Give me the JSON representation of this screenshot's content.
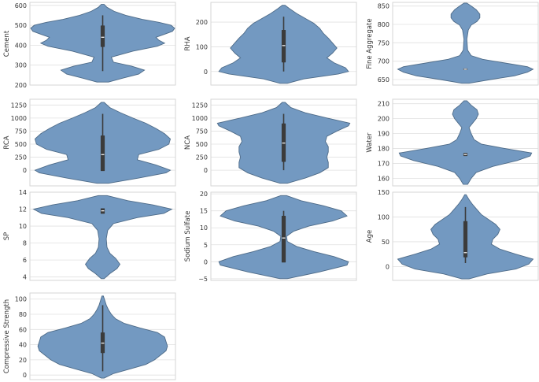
{
  "chart_data": [
    {
      "type": "violin",
      "ylabel": "Cement",
      "ylim": [
        200,
        615
      ],
      "yticks": [
        200,
        300,
        400,
        500,
        600
      ],
      "range": [
        215,
        605
      ],
      "density": [
        [
          215,
          0.08
        ],
        [
          235,
          0.28
        ],
        [
          255,
          0.5
        ],
        [
          275,
          0.58
        ],
        [
          295,
          0.4
        ],
        [
          315,
          0.15
        ],
        [
          340,
          0.12
        ],
        [
          370,
          0.42
        ],
        [
          395,
          0.76
        ],
        [
          410,
          0.86
        ],
        [
          425,
          0.78
        ],
        [
          440,
          0.74
        ],
        [
          455,
          0.86
        ],
        [
          470,
          0.97
        ],
        [
          485,
          1.0
        ],
        [
          500,
          0.95
        ],
        [
          515,
          0.78
        ],
        [
          530,
          0.55
        ],
        [
          550,
          0.32
        ],
        [
          570,
          0.16
        ],
        [
          590,
          0.06
        ],
        [
          605,
          0.02
        ]
      ],
      "box": {
        "q1": 395,
        "median": 440,
        "q3": 495,
        "whisker_low": 270,
        "whisker_high": 550
      },
      "grid": true
    },
    {
      "type": "violin",
      "ylabel": "RHA",
      "ylim": [
        -55,
        280
      ],
      "yticks": [
        0,
        100,
        200
      ],
      "range": [
        -48,
        268
      ],
      "density": [
        [
          -48,
          0.05
        ],
        [
          -30,
          0.28
        ],
        [
          -10,
          0.76
        ],
        [
          0,
          0.9
        ],
        [
          15,
          0.86
        ],
        [
          35,
          0.7
        ],
        [
          55,
          0.6
        ],
        [
          75,
          0.68
        ],
        [
          95,
          0.74
        ],
        [
          115,
          0.68
        ],
        [
          135,
          0.62
        ],
        [
          155,
          0.55
        ],
        [
          175,
          0.5
        ],
        [
          195,
          0.42
        ],
        [
          215,
          0.3
        ],
        [
          235,
          0.18
        ],
        [
          255,
          0.08
        ],
        [
          268,
          0.02
        ]
      ],
      "box": {
        "q1": 40,
        "median": 105,
        "q3": 165,
        "whisker_low": 0,
        "whisker_high": 222
      },
      "grid": true
    },
    {
      "type": "violin",
      "ylabel": "Fine Aggregate",
      "ylim": [
        635,
        860
      ],
      "yticks": [
        650,
        700,
        750,
        800,
        850
      ],
      "range": [
        640,
        858
      ],
      "density": [
        [
          640,
          0.05
        ],
        [
          650,
          0.35
        ],
        [
          660,
          0.68
        ],
        [
          670,
          0.86
        ],
        [
          678,
          0.94
        ],
        [
          685,
          0.86
        ],
        [
          695,
          0.55
        ],
        [
          705,
          0.24
        ],
        [
          715,
          0.08
        ],
        [
          730,
          0.03
        ],
        [
          760,
          0.02
        ],
        [
          785,
          0.04
        ],
        [
          798,
          0.08
        ],
        [
          808,
          0.16
        ],
        [
          818,
          0.2
        ],
        [
          828,
          0.2
        ],
        [
          840,
          0.15
        ],
        [
          850,
          0.08
        ],
        [
          858,
          0.02
        ]
      ],
      "box": {
        "q1": 678,
        "median": 678,
        "q3": 678,
        "whisker_low": 678,
        "whisker_high": 678
      },
      "grid": true
    },
    {
      "type": "violin",
      "ylabel": "RCA",
      "ylim": [
        -300,
        1360
      ],
      "yticks": [
        0,
        250,
        500,
        750,
        1000,
        1250
      ],
      "range": [
        -250,
        1300
      ],
      "density": [
        [
          -250,
          0.08
        ],
        [
          -150,
          0.5
        ],
        [
          -50,
          0.88
        ],
        [
          0,
          0.94
        ],
        [
          100,
          0.74
        ],
        [
          200,
          0.48
        ],
        [
          300,
          0.5
        ],
        [
          400,
          0.78
        ],
        [
          500,
          0.92
        ],
        [
          600,
          0.94
        ],
        [
          700,
          0.86
        ],
        [
          800,
          0.74
        ],
        [
          900,
          0.6
        ],
        [
          1000,
          0.42
        ],
        [
          1100,
          0.25
        ],
        [
          1200,
          0.1
        ],
        [
          1300,
          0.02
        ]
      ],
      "box": {
        "q1": 0,
        "median": 300,
        "q3": 650,
        "whisker_low": 0,
        "whisker_high": 1080
      },
      "grid": true
    },
    {
      "type": "violin",
      "ylabel": "NCA",
      "ylim": [
        -300,
        1360
      ],
      "yticks": [
        0,
        250,
        500,
        750,
        1000,
        1250
      ],
      "range": [
        -250,
        1300
      ],
      "density": [
        [
          -250,
          0.05
        ],
        [
          -150,
          0.3
        ],
        [
          -50,
          0.5
        ],
        [
          50,
          0.62
        ],
        [
          150,
          0.62
        ],
        [
          250,
          0.6
        ],
        [
          350,
          0.62
        ],
        [
          450,
          0.62
        ],
        [
          550,
          0.58
        ],
        [
          650,
          0.6
        ],
        [
          750,
          0.74
        ],
        [
          850,
          0.9
        ],
        [
          900,
          0.92
        ],
        [
          1000,
          0.6
        ],
        [
          1100,
          0.3
        ],
        [
          1200,
          0.1
        ],
        [
          1300,
          0.02
        ]
      ],
      "box": {
        "q1": 175,
        "median": 520,
        "q3": 880,
        "whisker_low": 0,
        "whisker_high": 1080
      },
      "grid": true
    },
    {
      "type": "violin",
      "ylabel": "Water",
      "ylim": [
        155,
        213
      ],
      "yticks": [
        160,
        170,
        180,
        190,
        200,
        210
      ],
      "range": [
        156,
        212
      ],
      "density": [
        [
          156,
          0.03
        ],
        [
          160,
          0.08
        ],
        [
          164,
          0.15
        ],
        [
          168,
          0.38
        ],
        [
          172,
          0.72
        ],
        [
          175,
          0.9
        ],
        [
          177,
          0.92
        ],
        [
          180,
          0.55
        ],
        [
          183,
          0.22
        ],
        [
          186,
          0.12
        ],
        [
          190,
          0.08
        ],
        [
          194,
          0.05
        ],
        [
          197,
          0.1
        ],
        [
          200,
          0.15
        ],
        [
          203,
          0.18
        ],
        [
          206,
          0.16
        ],
        [
          209,
          0.08
        ],
        [
          212,
          0.02
        ]
      ],
      "box": {
        "q1": 175.5,
        "median": 176,
        "q3": 176.5,
        "whisker_low": 175.5,
        "whisker_high": 176.5
      },
      "grid": true
    },
    {
      "type": "violin",
      "ylabel": "SP",
      "ylim": [
        3.6,
        14.0
      ],
      "yticks": [
        4,
        6,
        8,
        10,
        12,
        14
      ],
      "range": [
        3.8,
        13.6
      ],
      "density": [
        [
          3.8,
          0.02
        ],
        [
          4.4,
          0.1
        ],
        [
          5.0,
          0.2
        ],
        [
          5.5,
          0.24
        ],
        [
          6.2,
          0.18
        ],
        [
          6.8,
          0.1
        ],
        [
          7.5,
          0.06
        ],
        [
          8.5,
          0.05
        ],
        [
          9.5,
          0.07
        ],
        [
          10.3,
          0.15
        ],
        [
          11.0,
          0.48
        ],
        [
          11.5,
          0.85
        ],
        [
          12.0,
          0.96
        ],
        [
          12.5,
          0.7
        ],
        [
          13.0,
          0.35
        ],
        [
          13.6,
          0.06
        ]
      ],
      "box": {
        "q1": 11.55,
        "median": 11.8,
        "q3": 12.0,
        "whisker_low": 11.55,
        "whisker_high": 12.0
      },
      "grid": true
    },
    {
      "type": "violin",
      "ylabel": "Sodium Sulfate",
      "ylim": [
        -5.5,
        20.5
      ],
      "yticks": [
        -5,
        0,
        5,
        10,
        15,
        20
      ],
      "range": [
        -5,
        19.5
      ],
      "density": [
        [
          -5,
          0.05
        ],
        [
          -3,
          0.5
        ],
        [
          -1,
          0.88
        ],
        [
          0,
          0.9
        ],
        [
          1.5,
          0.7
        ],
        [
          3,
          0.42
        ],
        [
          4.5,
          0.18
        ],
        [
          6,
          0.05
        ],
        [
          7.5,
          0.04
        ],
        [
          9,
          0.14
        ],
        [
          10.5,
          0.35
        ],
        [
          12,
          0.68
        ],
        [
          13.5,
          0.88
        ],
        [
          15,
          0.8
        ],
        [
          16.5,
          0.55
        ],
        [
          18,
          0.24
        ],
        [
          19.5,
          0.04
        ]
      ],
      "box": {
        "q1": 0,
        "median": 7,
        "q3": 13.3,
        "whisker_low": 0,
        "whisker_high": 15
      },
      "grid": true
    },
    {
      "type": "violin",
      "ylabel": "Age",
      "ylim": [
        -28,
        150
      ],
      "yticks": [
        0,
        50,
        100,
        150
      ],
      "range": [
        -25,
        145
      ],
      "density": [
        [
          -25,
          0.05
        ],
        [
          -15,
          0.3
        ],
        [
          -5,
          0.7
        ],
        [
          5,
          0.88
        ],
        [
          15,
          0.94
        ],
        [
          25,
          0.7
        ],
        [
          35,
          0.48
        ],
        [
          45,
          0.36
        ],
        [
          55,
          0.38
        ],
        [
          65,
          0.45
        ],
        [
          75,
          0.48
        ],
        [
          85,
          0.42
        ],
        [
          95,
          0.32
        ],
        [
          105,
          0.22
        ],
        [
          115,
          0.16
        ],
        [
          125,
          0.1
        ],
        [
          135,
          0.05
        ],
        [
          145,
          0.01
        ]
      ],
      "box": {
        "q1": 20,
        "median": 28,
        "q3": 90,
        "whisker_low": 7,
        "whisker_high": 120
      },
      "grid": true
    },
    {
      "type": "violin",
      "ylabel": "Compressive Strength",
      "ylim": [
        -6,
        108
      ],
      "yticks": [
        0,
        20,
        40,
        60,
        80,
        100
      ],
      "range": [
        -4,
        104
      ],
      "density": [
        [
          -4,
          0.02
        ],
        [
          2,
          0.15
        ],
        [
          8,
          0.38
        ],
        [
          14,
          0.6
        ],
        [
          20,
          0.72
        ],
        [
          26,
          0.8
        ],
        [
          32,
          0.88
        ],
        [
          38,
          0.9
        ],
        [
          44,
          0.88
        ],
        [
          50,
          0.86
        ],
        [
          56,
          0.76
        ],
        [
          62,
          0.52
        ],
        [
          68,
          0.3
        ],
        [
          74,
          0.18
        ],
        [
          80,
          0.12
        ],
        [
          86,
          0.08
        ],
        [
          92,
          0.05
        ],
        [
          98,
          0.03
        ],
        [
          104,
          0.01
        ]
      ],
      "box": {
        "q1": 30,
        "median": 42,
        "q3": 55,
        "whisker_low": 5,
        "whisker_high": 92
      },
      "grid": true
    }
  ],
  "style": {
    "violin_fill": "#7399c1",
    "violin_edge": "#4e6b88",
    "box_color": "#3b3b3b",
    "median_color": "#ffffff",
    "grid_color": "#e0e0e0",
    "frame_color": "#d6d6d6"
  }
}
